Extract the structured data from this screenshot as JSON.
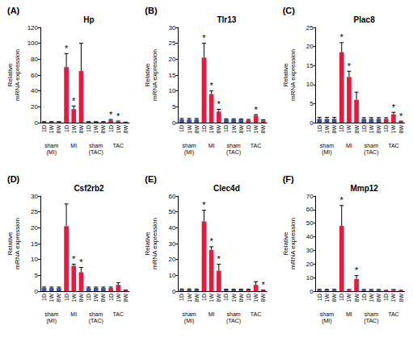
{
  "chart_data": [
    {
      "type": "bar",
      "panel": "(A)",
      "title": "Hp",
      "y_label": "Relative\nmRNA expression",
      "categories": [
        "1D",
        "1W",
        "8W",
        "1D",
        "1W",
        "8W",
        "1D",
        "1W",
        "8W",
        "1D",
        "1W",
        "8W"
      ],
      "groups": [
        "sham\n(MI)",
        "MI",
        "sham\n(TAC)",
        "TAC"
      ],
      "values": [
        1,
        1,
        1,
        70,
        17,
        65,
        1,
        1,
        1,
        3,
        1.5,
        0.5
      ],
      "errors": [
        0.3,
        0.3,
        0.3,
        17,
        4,
        35,
        0.3,
        0.3,
        0.3,
        1,
        0.5,
        0.2
      ],
      "asterisks": [
        null,
        null,
        null,
        "*",
        "*",
        null,
        null,
        null,
        null,
        "*",
        "*",
        null
      ],
      "colors": [
        "#3b4fa8",
        "#3b4fa8",
        "#3b4fa8",
        "#e8193c",
        "#e8193c",
        "#e8193c",
        "#3b4fa8",
        "#3b4fa8",
        "#3b4fa8",
        "#e8193c",
        "#e8193c",
        "#e8193c"
      ],
      "ylim": [
        0,
        120
      ],
      "yticks": [
        0,
        20,
        40,
        60,
        80,
        100,
        120
      ],
      "grid": false
    },
    {
      "type": "bar",
      "panel": "(B)",
      "title": "Tlr13",
      "y_label": "Relative\nmRNA expression",
      "categories": [
        "1D",
        "1W",
        "8W",
        "1D",
        "1W",
        "8W",
        "1D",
        "1W",
        "8W",
        "1D",
        "1W",
        "8W"
      ],
      "groups": [
        "sham\n(MI)",
        "MI",
        "sham\n(TAC)",
        "TAC"
      ],
      "values": [
        1,
        1,
        1,
        20.5,
        9,
        3.5,
        1,
        1,
        1,
        0.8,
        2.2,
        0.7
      ],
      "errors": [
        0.3,
        0.3,
        0.3,
        4.5,
        1,
        0.7,
        0.2,
        0.2,
        0.2,
        0.2,
        0.3,
        0.2
      ],
      "asterisks": [
        null,
        null,
        null,
        "*",
        "*",
        "*",
        null,
        null,
        null,
        null,
        "*",
        null
      ],
      "colors": [
        "#3b4fa8",
        "#3b4fa8",
        "#3b4fa8",
        "#e8193c",
        "#e8193c",
        "#e8193c",
        "#3b4fa8",
        "#3b4fa8",
        "#3b4fa8",
        "#e8193c",
        "#e8193c",
        "#e8193c"
      ],
      "ylim": [
        0,
        30
      ],
      "yticks": [
        0,
        5,
        10,
        15,
        20,
        25,
        30
      ],
      "grid": false
    },
    {
      "type": "bar",
      "panel": "(C)",
      "title": "Plac8",
      "y_label": "Relative\nmRNA expression",
      "categories": [
        "1D",
        "1W",
        "8W",
        "1D",
        "1W",
        "8W",
        "1D",
        "1W",
        "8W",
        "1D",
        "1W",
        "8W"
      ],
      "groups": [
        "sham\n(MI)",
        "MI",
        "sham\n(TAC)",
        "TAC"
      ],
      "values": [
        1,
        1,
        1,
        18.5,
        12,
        6,
        1,
        1,
        1,
        1,
        2.2,
        0.3
      ],
      "errors": [
        0.4,
        0.4,
        0.4,
        2.5,
        1.5,
        2,
        0.3,
        0.3,
        0.3,
        0.3,
        0.5,
        0.1
      ],
      "asterisks": [
        null,
        null,
        null,
        "*",
        "*",
        null,
        null,
        null,
        null,
        null,
        "*",
        "*"
      ],
      "colors": [
        "#3b4fa8",
        "#3b4fa8",
        "#3b4fa8",
        "#e8193c",
        "#e8193c",
        "#e8193c",
        "#3b4fa8",
        "#3b4fa8",
        "#3b4fa8",
        "#e8193c",
        "#e8193c",
        "#e8193c"
      ],
      "ylim": [
        0,
        25
      ],
      "yticks": [
        0,
        5,
        10,
        15,
        20,
        25
      ],
      "grid": false
    },
    {
      "type": "bar",
      "panel": "(D)",
      "title": "Csf2rb2",
      "y_label": "Relative\nmRNA expression",
      "categories": [
        "1D",
        "1W",
        "8W",
        "1D",
        "1W",
        "8W",
        "1D",
        "1W",
        "8W",
        "1D",
        "1W",
        "8W"
      ],
      "groups": [
        "sham\n(MI)",
        "MI",
        "sham\n(TAC)",
        "TAC"
      ],
      "values": [
        1,
        1,
        1,
        20.5,
        8,
        6,
        1,
        1,
        1,
        1,
        2,
        0.3
      ],
      "errors": [
        0.3,
        0.3,
        0.3,
        7,
        0.5,
        1.5,
        0.3,
        0.3,
        0.3,
        0.3,
        0.7,
        0.1
      ],
      "asterisks": [
        null,
        null,
        null,
        null,
        "*",
        "*",
        null,
        null,
        null,
        null,
        null,
        null
      ],
      "colors": [
        "#3b4fa8",
        "#3b4fa8",
        "#3b4fa8",
        "#e8193c",
        "#e8193c",
        "#e8193c",
        "#3b4fa8",
        "#3b4fa8",
        "#3b4fa8",
        "#e8193c",
        "#e8193c",
        "#e8193c"
      ],
      "ylim": [
        0,
        30
      ],
      "yticks": [
        0,
        5,
        10,
        15,
        20,
        25,
        30
      ],
      "grid": false
    },
    {
      "type": "bar",
      "panel": "(E)",
      "title": "Clec4d",
      "y_label": "Relative\nmRNA expression",
      "categories": [
        "1D",
        "1W",
        "8W",
        "1D",
        "1W",
        "8W",
        "1D",
        "1W",
        "8W",
        "1D",
        "1W",
        "8W"
      ],
      "groups": [
        "sham\n(MI)",
        "MI",
        "sham\n(TAC)",
        "TAC"
      ],
      "values": [
        1,
        1,
        1,
        44,
        26,
        13,
        1,
        1,
        1,
        1,
        4,
        0.5
      ],
      "errors": [
        0.4,
        0.4,
        0.4,
        7,
        2,
        4,
        0.3,
        0.3,
        0.3,
        0.3,
        2,
        0.2
      ],
      "asterisks": [
        null,
        null,
        null,
        "*",
        "*",
        "*",
        null,
        null,
        null,
        null,
        null,
        "*"
      ],
      "colors": [
        "#3b4fa8",
        "#3b4fa8",
        "#3b4fa8",
        "#e8193c",
        "#e8193c",
        "#e8193c",
        "#3b4fa8",
        "#3b4fa8",
        "#3b4fa8",
        "#e8193c",
        "#e8193c",
        "#e8193c"
      ],
      "ylim": [
        0,
        60
      ],
      "yticks": [
        0,
        10,
        20,
        30,
        40,
        50,
        60
      ],
      "grid": false
    },
    {
      "type": "bar",
      "panel": "(F)",
      "title": "Mmp12",
      "y_label": "Relative\nmRNA expression",
      "categories": [
        "1D",
        "1W",
        "8W",
        "1D",
        "1W",
        "8W",
        "1D",
        "1W",
        "8W",
        "1D",
        "1W",
        "8W"
      ],
      "groups": [
        "sham\n(MI)",
        "MI",
        "sham\n(TAC)",
        "TAC"
      ],
      "values": [
        1,
        1,
        1,
        48,
        1,
        9,
        1,
        1,
        1,
        0.5,
        1,
        0.5
      ],
      "errors": [
        0.4,
        0.4,
        0.4,
        15,
        0.3,
        2.5,
        0.3,
        0.3,
        0.3,
        0.2,
        0.3,
        0.2
      ],
      "asterisks": [
        null,
        null,
        null,
        "*",
        null,
        "*",
        null,
        null,
        null,
        null,
        null,
        null
      ],
      "colors": [
        "#3b4fa8",
        "#3b4fa8",
        "#3b4fa8",
        "#e8193c",
        "#e8193c",
        "#e8193c",
        "#3b4fa8",
        "#3b4fa8",
        "#3b4fa8",
        "#e8193c",
        "#e8193c",
        "#e8193c"
      ],
      "ylim": [
        0,
        70
      ],
      "yticks": [
        0,
        10,
        20,
        30,
        40,
        50,
        60,
        70
      ],
      "grid": false
    }
  ]
}
